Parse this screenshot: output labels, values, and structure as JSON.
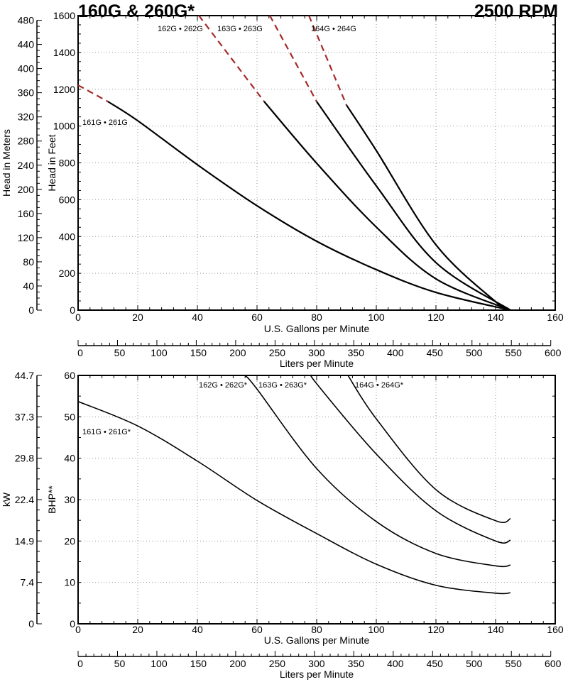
{
  "header": {
    "title": "160G & 260G*",
    "speed": "2500 RPM"
  },
  "colors": {
    "curve": "#000000",
    "extrapolated": "#a52a2a",
    "grid": "#999999"
  },
  "chart_data": [
    {
      "type": "line",
      "xlabel": "U.S. Gallons per Minute",
      "ylabel": "Head in Feet",
      "y2label": "Head in Meters",
      "x2label": "Liters per Minute",
      "xlim": [
        0,
        160
      ],
      "ylim": [
        0,
        1600
      ],
      "xticks": [
        0,
        20,
        40,
        60,
        80,
        100,
        120,
        140,
        160
      ],
      "yticks": [
        0,
        200,
        400,
        600,
        800,
        1000,
        1200,
        1400,
        1600
      ],
      "y2ticks": [
        0,
        40,
        80,
        120,
        160,
        200,
        240,
        280,
        320,
        360,
        400,
        440,
        480
      ],
      "x2ticks": [
        0,
        50,
        100,
        150,
        200,
        250,
        300,
        350,
        400,
        450,
        500,
        550,
        600
      ],
      "grid": true,
      "series": [
        {
          "name": "161G • 261G",
          "dashed": [
            [
              0,
              1222
            ],
            [
              10,
              1133
            ]
          ],
          "solid": [
            [
              10,
              1133
            ],
            [
              20,
              1029
            ],
            [
              40,
              790
            ],
            [
              60,
              567
            ],
            [
              80,
              374
            ],
            [
              100,
              220
            ],
            [
              120,
              96
            ],
            [
              145,
              0
            ]
          ]
        },
        {
          "name": "162G • 262G",
          "dashed": [
            [
              40.5,
              1600
            ],
            [
              62.4,
              1133
            ]
          ],
          "solid": [
            [
              62.4,
              1133
            ],
            [
              80,
              798
            ],
            [
              100,
              451
            ],
            [
              120,
              170
            ],
            [
              145,
              0
            ]
          ]
        },
        {
          "name": "163G • 263G",
          "dashed": [
            [
              64.3,
              1600
            ],
            [
              80,
              1133
            ]
          ],
          "solid": [
            [
              80,
              1133
            ],
            [
              100,
              675
            ],
            [
              120,
              258
            ],
            [
              145,
              0
            ]
          ]
        },
        {
          "name": "164G • 264G",
          "dashed": [
            [
              77.4,
              1600
            ],
            [
              90,
              1114
            ]
          ],
          "solid": [
            [
              90,
              1114
            ],
            [
              100,
              867
            ],
            [
              120,
              355
            ],
            [
              140,
              46
            ],
            [
              145,
              0
            ]
          ]
        }
      ]
    },
    {
      "type": "line",
      "xlabel": "U.S. Gallons per Minute",
      "ylabel": "BHP**",
      "y2label": "kW",
      "x2label": "Liters per Minute",
      "xlim": [
        0,
        160
      ],
      "ylim": [
        0,
        60
      ],
      "xticks": [
        0,
        20,
        40,
        60,
        80,
        100,
        120,
        140,
        160
      ],
      "yticks": [
        10,
        20,
        30,
        40,
        50,
        60
      ],
      "y2ticks": [
        "0",
        "7.4",
        "14.9",
        "22.4",
        "29.8",
        "37.3",
        "44.7"
      ],
      "x2ticks": [
        0,
        50,
        100,
        150,
        200,
        250,
        300,
        350,
        400,
        450,
        500,
        550,
        600
      ],
      "grid": true,
      "series": [
        {
          "name": "161G • 261G*",
          "solid": [
            [
              0,
              53.7
            ],
            [
              20,
              47.8
            ],
            [
              40,
              39.3
            ],
            [
              60,
              29.8
            ],
            [
              80,
              21.8
            ],
            [
              100,
              14.4
            ],
            [
              120,
              9.3
            ],
            [
              140,
              7.4
            ],
            [
              145,
              7.5
            ]
          ]
        },
        {
          "name": "162G • 262G*",
          "solid": [
            [
              56,
              60
            ],
            [
              60,
              56.7
            ],
            [
              80,
              37.5
            ],
            [
              100,
              24.7
            ],
            [
              120,
              17
            ],
            [
              140,
              14
            ],
            [
              145,
              14.2
            ]
          ]
        },
        {
          "name": "163G • 263G*",
          "solid": [
            [
              78.6,
              60
            ],
            [
              80,
              58
            ],
            [
              100,
              41
            ],
            [
              120,
              27.3
            ],
            [
              140,
              20
            ],
            [
              145,
              20.2
            ]
          ]
        },
        {
          "name": "164G • 264G*",
          "solid": [
            [
              90.5,
              60
            ],
            [
              100,
              49.5
            ],
            [
              120,
              32.4
            ],
            [
              140,
              24.9
            ],
            [
              145,
              25.4
            ]
          ]
        }
      ]
    }
  ]
}
